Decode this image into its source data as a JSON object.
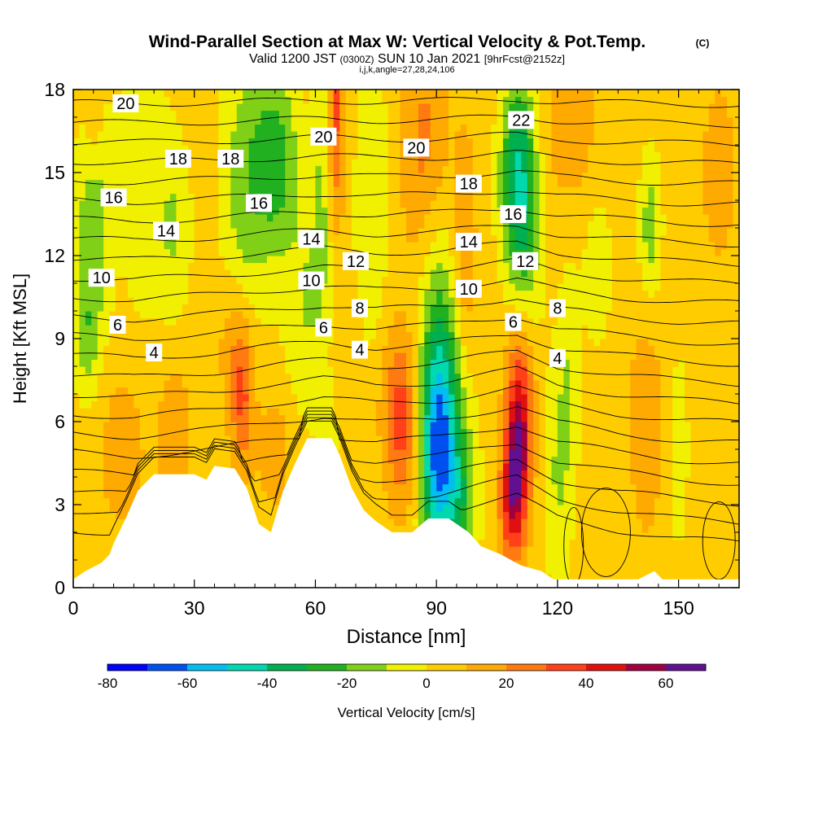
{
  "title": {
    "main": "Wind-Parallel Section at Max W: Vertical Velocity & Pot.Temp.",
    "copyright": "(C)",
    "valid_prefix": "Valid 1200 JST",
    "valid_utc": "(0300Z)",
    "valid_date": "SUN 10 Jan 2021",
    "forecast": "[9hrFcst@2152z]",
    "indices": "i,j,k,angle=27,28,24,106"
  },
  "chart_data": {
    "type": "heatmap",
    "xlabel": "Distance [nm]",
    "ylabel": "Height [Kft MSL]",
    "xlim": [
      0,
      165
    ],
    "ylim": [
      0,
      18
    ],
    "x_ticks": [
      0,
      30,
      60,
      90,
      120,
      150
    ],
    "y_ticks": [
      0,
      3,
      6,
      9,
      12,
      15,
      18
    ],
    "colorbar": {
      "label": "Vertical Velocity [cm/s]",
      "min": -80,
      "max": 70,
      "step": 10,
      "tick_labels": [
        -80,
        -60,
        -40,
        -20,
        0,
        20,
        40,
        60
      ],
      "colors": [
        "#0000ff",
        "#0050f0",
        "#00bff0",
        "#00d8b0",
        "#00b050",
        "#20b020",
        "#80d018",
        "#f0f000",
        "#ffcc00",
        "#ffaa00",
        "#ff7a10",
        "#ff4018",
        "#e01010",
        "#a00040",
        "#601090"
      ]
    },
    "background_value": 5,
    "vertical_velocity_features": [
      {
        "x": 5,
        "z": 13.5,
        "sx": 3,
        "sz": 3.5,
        "value": -25
      },
      {
        "x": 3,
        "z": 9,
        "sx": 2,
        "sz": 1.5,
        "value": -15
      },
      {
        "x": 17,
        "z": 15,
        "sx": 4,
        "sz": 4,
        "value": -12
      },
      {
        "x": 25,
        "z": 13,
        "sx": 3,
        "sz": 2.5,
        "value": -15
      },
      {
        "x": 42,
        "z": 14,
        "sx": 4,
        "sz": 4,
        "value": -20
      },
      {
        "x": 50,
        "z": 15.5,
        "sx": 4,
        "sz": 2.5,
        "value": -30
      },
      {
        "x": 58,
        "z": 10,
        "sx": 4,
        "sz": 3,
        "value": -15
      },
      {
        "x": 62,
        "z": 15,
        "sx": 2,
        "sz": 3.5,
        "value": -15
      },
      {
        "x": 64,
        "z": 7,
        "sx": 2,
        "sz": 2,
        "value": -12
      },
      {
        "x": 74,
        "z": 14,
        "sx": 3,
        "sz": 4,
        "value": -15
      },
      {
        "x": 90,
        "z": 4.5,
        "sx": 3,
        "sz": 2.5,
        "value": -45
      },
      {
        "x": 92,
        "z": 6.5,
        "sx": 4,
        "sz": 3,
        "value": -30
      },
      {
        "x": 96,
        "z": 3,
        "sx": 3,
        "sz": 2,
        "value": -25
      },
      {
        "x": 90,
        "z": 10,
        "sx": 3,
        "sz": 3,
        "value": -15
      },
      {
        "x": 110,
        "z": 15,
        "sx": 3,
        "sz": 2.5,
        "value": -40
      },
      {
        "x": 112,
        "z": 12,
        "sx": 3,
        "sz": 3,
        "value": -20
      },
      {
        "x": 120,
        "z": 4,
        "sx": 2.5,
        "sz": 3,
        "value": -15
      },
      {
        "x": 123,
        "z": 8,
        "sx": 2,
        "sz": 3,
        "value": -12
      },
      {
        "x": 130,
        "z": 11.5,
        "sx": 2.5,
        "sz": 2,
        "value": -12
      },
      {
        "x": 143,
        "z": 13,
        "sx": 2,
        "sz": 2,
        "value": -20
      },
      {
        "x": 150,
        "z": 5,
        "sx": 2,
        "sz": 3,
        "value": -10
      },
      {
        "x": 110,
        "z": 4.5,
        "sx": 2,
        "sz": 2,
        "value": 40
      },
      {
        "x": 111,
        "z": 7,
        "sx": 2.5,
        "sz": 2.5,
        "value": 30
      },
      {
        "x": 108,
        "z": 3,
        "sx": 2,
        "sz": 1.5,
        "value": 25
      },
      {
        "x": 65,
        "z": 17,
        "sx": 1.5,
        "sz": 3,
        "value": 30
      },
      {
        "x": 42,
        "z": 6.8,
        "sx": 2,
        "sz": 1.8,
        "value": 25
      },
      {
        "x": 40,
        "z": 9,
        "sx": 3,
        "sz": 2,
        "value": 15
      },
      {
        "x": 82,
        "z": 5.5,
        "sx": 3,
        "sz": 2,
        "value": 20
      },
      {
        "x": 80,
        "z": 7,
        "sx": 3,
        "sz": 2,
        "value": 15
      },
      {
        "x": 87,
        "z": 16,
        "sx": 4,
        "sz": 3,
        "value": 18
      },
      {
        "x": 97,
        "z": 12,
        "sx": 2,
        "sz": 3,
        "value": 15
      },
      {
        "x": 65,
        "z": 8,
        "sx": 3,
        "sz": 1.5,
        "value": 12
      },
      {
        "x": 12,
        "z": 5,
        "sx": 4,
        "sz": 2,
        "value": 12
      },
      {
        "x": 25,
        "z": 5.5,
        "sx": 3,
        "sz": 2,
        "value": 13
      },
      {
        "x": 123,
        "z": 17,
        "sx": 4,
        "sz": 2,
        "value": 15
      },
      {
        "x": 5,
        "z": 16.5,
        "sx": 2,
        "sz": 1.5,
        "value": 15
      },
      {
        "x": 50,
        "z": 5,
        "sx": 3,
        "sz": 1.5,
        "value": 12
      },
      {
        "x": 142,
        "z": 6,
        "sx": 3,
        "sz": 3,
        "value": 12
      },
      {
        "x": 160,
        "z": 15,
        "sx": 4,
        "sz": 3,
        "value": 8
      }
    ],
    "terrain": [
      [
        0,
        0.3
      ],
      [
        3,
        0.6
      ],
      [
        7,
        0.9
      ],
      [
        9,
        1.2
      ],
      [
        10,
        1.6
      ],
      [
        13,
        2.5
      ],
      [
        16,
        3.5
      ],
      [
        20,
        4.1
      ],
      [
        30,
        4.1
      ],
      [
        33,
        3.9
      ],
      [
        35,
        4.4
      ],
      [
        40,
        4.3
      ],
      [
        43,
        3.6
      ],
      [
        46,
        2.3
      ],
      [
        49,
        2.0
      ],
      [
        52,
        3.5
      ],
      [
        55,
        4.5
      ],
      [
        58,
        5.4
      ],
      [
        64,
        5.4
      ],
      [
        66,
        4.8
      ],
      [
        69,
        3.6
      ],
      [
        72,
        2.8
      ],
      [
        75,
        2.4
      ],
      [
        79,
        2.0
      ],
      [
        84,
        2.0
      ],
      [
        88,
        2.5
      ],
      [
        93,
        2.5
      ],
      [
        98,
        2.0
      ],
      [
        101,
        1.5
      ],
      [
        106,
        1.2
      ],
      [
        111,
        0.8
      ],
      [
        116,
        0.6
      ],
      [
        119,
        0.3
      ],
      [
        140,
        0.3
      ],
      [
        144,
        0.6
      ],
      [
        146,
        0.3
      ],
      [
        165,
        0.3
      ]
    ],
    "isentropes": {
      "description": "Potential temperature contours",
      "levels": [
        1,
        2,
        3,
        4,
        5,
        6,
        7,
        8,
        9,
        10,
        11,
        12,
        13,
        14,
        15,
        16,
        17,
        18,
        19,
        20,
        21,
        22,
        23
      ],
      "labels": [
        {
          "text": "20",
          "x": 13,
          "z": 17.5
        },
        {
          "text": "18",
          "x": 26,
          "z": 15.5
        },
        {
          "text": "18",
          "x": 39,
          "z": 15.5
        },
        {
          "text": "16",
          "x": 10,
          "z": 14.1
        },
        {
          "text": "16",
          "x": 46,
          "z": 13.9
        },
        {
          "text": "14",
          "x": 23,
          "z": 12.9
        },
        {
          "text": "10",
          "x": 7,
          "z": 11.2
        },
        {
          "text": "6",
          "x": 11,
          "z": 9.5
        },
        {
          "text": "4",
          "x": 20,
          "z": 8.5
        },
        {
          "text": "20",
          "x": 62,
          "z": 16.3
        },
        {
          "text": "14",
          "x": 59,
          "z": 12.6
        },
        {
          "text": "10",
          "x": 59,
          "z": 11.1
        },
        {
          "text": "6",
          "x": 62,
          "z": 9.4
        },
        {
          "text": "12",
          "x": 70,
          "z": 11.8
        },
        {
          "text": "8",
          "x": 71,
          "z": 10.1
        },
        {
          "text": "4",
          "x": 71,
          "z": 8.6
        },
        {
          "text": "20",
          "x": 85,
          "z": 15.9
        },
        {
          "text": "18",
          "x": 98,
          "z": 14.6
        },
        {
          "text": "14",
          "x": 98,
          "z": 12.5
        },
        {
          "text": "10",
          "x": 98,
          "z": 10.8
        },
        {
          "text": "22",
          "x": 111,
          "z": 16.9
        },
        {
          "text": "16",
          "x": 109,
          "z": 13.5
        },
        {
          "text": "12",
          "x": 112,
          "z": 11.8
        },
        {
          "text": "6",
          "x": 109,
          "z": 9.6
        },
        {
          "text": "8",
          "x": 120,
          "z": 10.1
        },
        {
          "text": "4",
          "x": 120,
          "z": 8.3
        }
      ]
    }
  }
}
